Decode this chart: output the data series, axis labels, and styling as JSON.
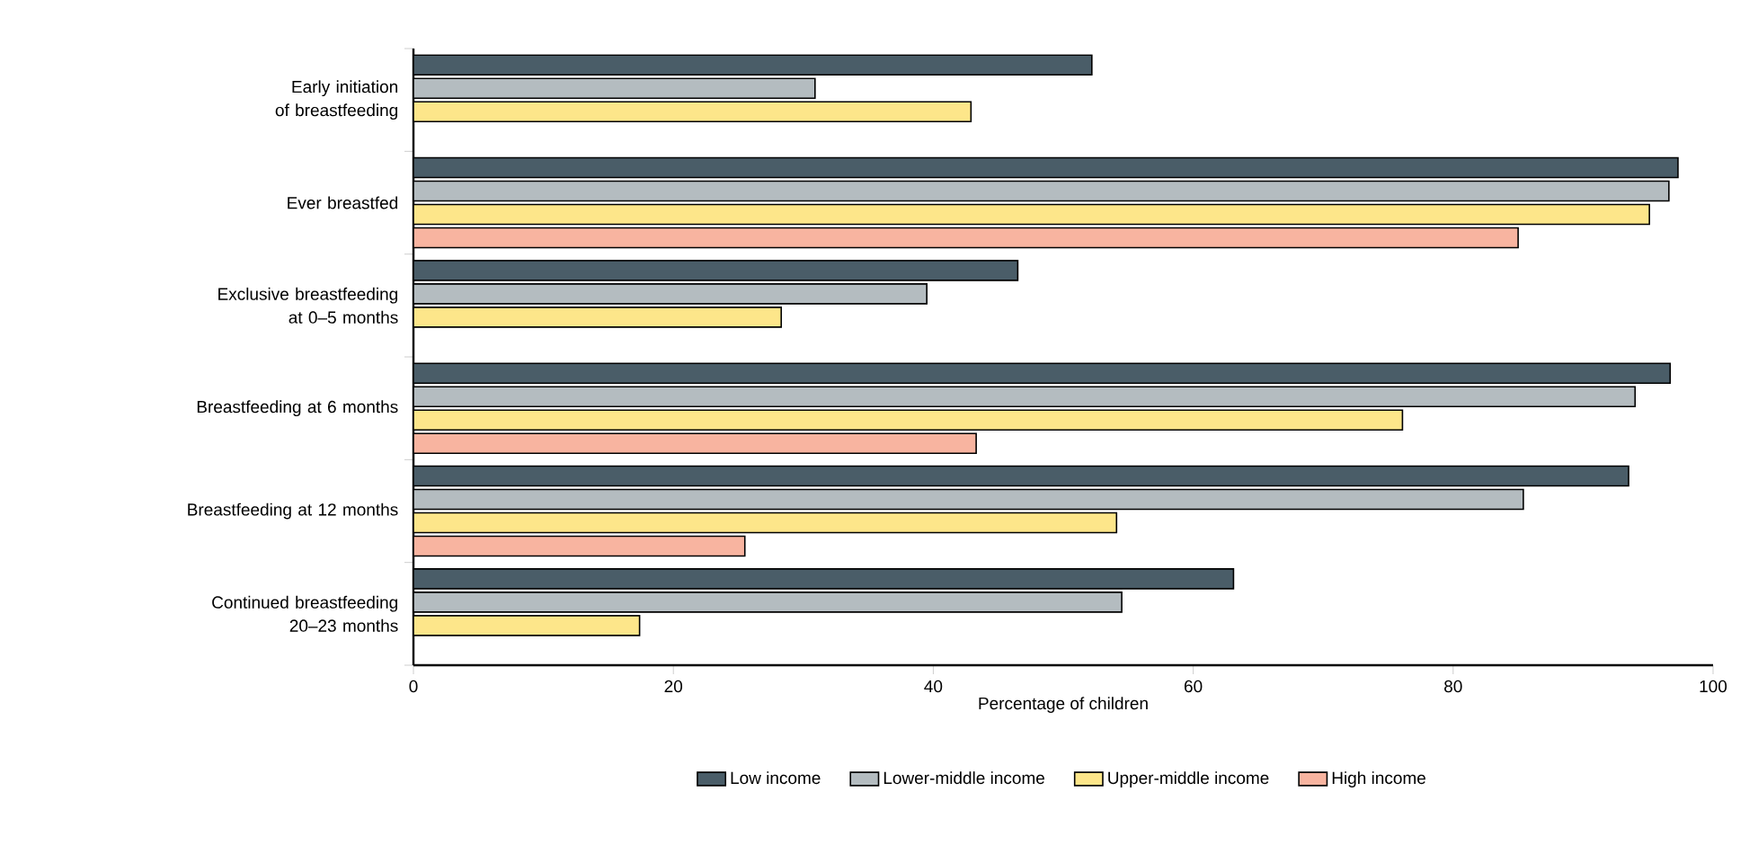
{
  "chart_data": {
    "type": "bar",
    "orientation": "horizontal",
    "xlabel": "Percentage of children",
    "categories": [
      "Early initiation of breastfeeding",
      "Ever breastfed",
      "Exclusive breastfeeding at 0–5 months",
      "Breastfeeding at 6 months",
      "Breastfeeding at 12 months",
      "Continued breastfeeding 20–23 months"
    ],
    "series": [
      {
        "name": "Low income",
        "color": "#4a5d68",
        "values": [
          52.2,
          97.3,
          46.5,
          96.7,
          93.5,
          63.1
        ]
      },
      {
        "name": "Lower-middle income",
        "color": "#b4bcc0",
        "values": [
          30.9,
          96.6,
          39.5,
          94.0,
          85.4,
          54.5
        ]
      },
      {
        "name": "Upper-middle income",
        "color": "#fde68a",
        "values": [
          42.9,
          95.1,
          28.3,
          76.1,
          54.1,
          17.4
        ]
      },
      {
        "name": "High income",
        "color": "#f8b4a0",
        "values": [
          null,
          85.0,
          null,
          43.3,
          25.5,
          null
        ]
      }
    ],
    "xlim": [
      0,
      100
    ],
    "xticks": [
      0,
      20,
      40,
      60,
      80,
      100
    ],
    "grid": false,
    "legend": "bottom"
  }
}
